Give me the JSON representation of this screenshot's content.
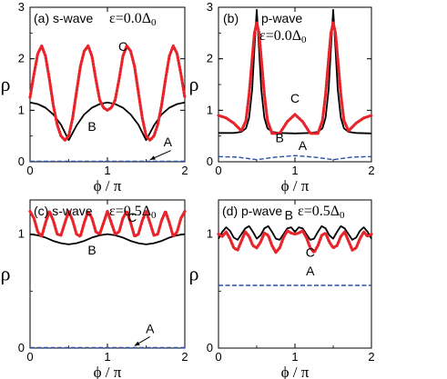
{
  "chart_data": [
    {
      "id": "a",
      "type": "line",
      "title": "(a) s-wave",
      "condition": "ε=0.0Δ",
      "condition_sub": "0",
      "xlabel": "ϕ / π",
      "ylabel": "ρ",
      "xlim": [
        0,
        2
      ],
      "ylim": [
        0,
        3
      ],
      "xticks": [
        0,
        1,
        2
      ],
      "yticks": [
        0,
        1,
        2,
        3
      ],
      "series": [
        {
          "name": "A",
          "color": "#2b4fa8",
          "style": "dashed",
          "x": [
            0,
            0.25,
            0.5,
            0.75,
            1,
            1.25,
            1.5,
            1.75,
            2
          ],
          "y": [
            0.01,
            0.01,
            0.01,
            0.01,
            0.01,
            0.01,
            0.01,
            0.01,
            0.01
          ]
        },
        {
          "name": "B",
          "color": "#000000",
          "style": "solid",
          "x": [
            0,
            0.1,
            0.2,
            0.3,
            0.4,
            0.5,
            0.6,
            0.7,
            0.8,
            0.9,
            1.0,
            1.1,
            1.2,
            1.3,
            1.4,
            1.5,
            1.6,
            1.7,
            1.8,
            1.9,
            2.0
          ],
          "y": [
            1.15,
            1.12,
            1.05,
            0.92,
            0.72,
            0.42,
            0.7,
            0.92,
            1.05,
            1.12,
            1.15,
            1.12,
            1.05,
            0.92,
            0.72,
            0.42,
            0.7,
            0.92,
            1.05,
            1.12,
            1.15
          ]
        },
        {
          "name": "C",
          "color": "#e8242a",
          "style": "dotted",
          "x": [
            0,
            0.05,
            0.1,
            0.15,
            0.2,
            0.25,
            0.3,
            0.35,
            0.4,
            0.45,
            0.5,
            0.55,
            0.6,
            0.65,
            0.7,
            0.75,
            0.8,
            0.85,
            0.9,
            0.95,
            1.0,
            1.05,
            1.1,
            1.15,
            1.2,
            1.25,
            1.3,
            1.35,
            1.4,
            1.45,
            1.5,
            1.55,
            1.6,
            1.65,
            1.7,
            1.75,
            1.8,
            1.85,
            1.9,
            1.95,
            2.0
          ],
          "y": [
            1.25,
            1.7,
            2.1,
            2.25,
            2.05,
            1.6,
            1.1,
            0.72,
            0.5,
            0.42,
            0.5,
            0.85,
            1.35,
            1.85,
            2.15,
            2.25,
            2.05,
            1.6,
            1.2,
            1.05,
            1.0,
            1.05,
            1.2,
            1.6,
            2.05,
            2.25,
            2.15,
            1.85,
            1.35,
            0.85,
            0.5,
            0.42,
            0.5,
            0.72,
            1.1,
            1.6,
            2.05,
            2.25,
            2.1,
            1.7,
            1.25
          ]
        }
      ],
      "annotations": [
        {
          "text": "C",
          "x": 1.2,
          "y": 2.15
        },
        {
          "text": "B",
          "x": 0.8,
          "y": 0.6
        },
        {
          "text": "A",
          "x": 1.78,
          "y": 0.3
        }
      ],
      "arrow": {
        "from": [
          1.82,
          0.22
        ],
        "to": [
          1.55,
          0.04
        ]
      }
    },
    {
      "id": "b",
      "type": "line",
      "title": "(b)",
      "title2": "p-wave",
      "condition": "ε=0.0Δ",
      "condition_sub": "0",
      "xlabel": "ϕ / π",
      "ylabel": "ρ",
      "xlim": [
        0,
        2
      ],
      "ylim": [
        0,
        3
      ],
      "xticks": [
        0,
        1,
        2
      ],
      "yticks": [
        0,
        1,
        2,
        3
      ],
      "series": [
        {
          "name": "A",
          "color": "#2b4fa8",
          "style": "dashed",
          "x": [
            0,
            0.25,
            0.5,
            0.75,
            1,
            1.25,
            1.5,
            1.75,
            2
          ],
          "y": [
            0.1,
            0.09,
            0.04,
            0.09,
            0.12,
            0.09,
            0.04,
            0.09,
            0.1
          ]
        },
        {
          "name": "B",
          "color": "#000000",
          "style": "solid",
          "x": [
            0,
            0.2,
            0.3,
            0.36,
            0.4,
            0.44,
            0.47,
            0.5,
            0.53,
            0.56,
            0.6,
            0.64,
            0.7,
            0.8,
            1.0,
            1.2,
            1.3,
            1.36,
            1.4,
            1.44,
            1.47,
            1.5,
            1.53,
            1.56,
            1.6,
            1.64,
            1.7,
            1.8,
            2.0
          ],
          "y": [
            0.56,
            0.56,
            0.58,
            0.65,
            0.85,
            1.4,
            2.2,
            2.95,
            2.2,
            1.4,
            0.85,
            0.65,
            0.58,
            0.56,
            0.55,
            0.56,
            0.58,
            0.65,
            0.85,
            1.4,
            2.2,
            2.95,
            2.2,
            1.4,
            0.85,
            0.65,
            0.58,
            0.56,
            0.55
          ]
        },
        {
          "name": "C",
          "color": "#e8242a",
          "style": "dotted",
          "x": [
            0,
            0.1,
            0.2,
            0.3,
            0.36,
            0.4,
            0.44,
            0.47,
            0.5,
            0.53,
            0.56,
            0.6,
            0.64,
            0.7,
            0.8,
            0.9,
            1.0,
            1.1,
            1.2,
            1.3,
            1.36,
            1.4,
            1.44,
            1.47,
            1.5,
            1.53,
            1.56,
            1.6,
            1.64,
            1.7,
            1.8,
            1.9,
            2.0
          ],
          "y": [
            0.9,
            0.85,
            0.75,
            0.6,
            0.8,
            1.3,
            2.0,
            2.5,
            2.7,
            2.5,
            2.0,
            1.3,
            0.8,
            0.55,
            0.55,
            0.78,
            0.92,
            0.78,
            0.55,
            0.55,
            0.8,
            1.3,
            2.0,
            2.5,
            2.7,
            2.5,
            2.0,
            1.3,
            0.8,
            0.6,
            0.75,
            0.85,
            0.9
          ]
        }
      ],
      "annotations": [
        {
          "text": "C",
          "x": 1.0,
          "y": 1.15
        },
        {
          "text": "B",
          "x": 0.8,
          "y": 0.38
        },
        {
          "text": "A",
          "x": 1.1,
          "y": 0.23
        }
      ]
    },
    {
      "id": "c",
      "type": "line",
      "title": "(c) s-wave",
      "condition": "ε=0.5Δ",
      "condition_sub": "0",
      "xlabel": "ϕ / π",
      "ylabel": "ρ",
      "xlim": [
        0,
        2
      ],
      "ylim": [
        0,
        1.3
      ],
      "xticks": [
        0,
        1,
        2
      ],
      "yticks": [
        0,
        1
      ],
      "series": [
        {
          "name": "A",
          "color": "#2b4fa8",
          "style": "dashed",
          "x": [
            0,
            0.5,
            1,
            1.5,
            2
          ],
          "y": [
            0.004,
            0.004,
            0.004,
            0.004,
            0.004
          ]
        },
        {
          "name": "B",
          "color": "#000000",
          "style": "solid",
          "x": [
            0,
            0.1,
            0.2,
            0.3,
            0.4,
            0.5,
            0.6,
            0.7,
            0.8,
            0.9,
            1.0,
            1.1,
            1.2,
            1.3,
            1.4,
            1.5,
            1.6,
            1.7,
            1.8,
            1.9,
            2.0
          ],
          "y": [
            1.0,
            0.99,
            0.97,
            0.94,
            0.92,
            0.91,
            0.92,
            0.94,
            0.97,
            0.99,
            1.0,
            0.99,
            0.97,
            0.94,
            0.92,
            0.91,
            0.92,
            0.94,
            0.97,
            0.99,
            1.0
          ]
        },
        {
          "name": "C",
          "color": "#e8242a",
          "style": "dotted",
          "x": [
            0,
            0.05,
            0.1,
            0.15,
            0.2,
            0.25,
            0.3,
            0.35,
            0.4,
            0.45,
            0.5,
            0.55,
            0.6,
            0.65,
            0.7,
            0.75,
            0.8,
            0.85,
            0.9,
            0.95,
            1.0,
            1.05,
            1.1,
            1.15,
            1.2,
            1.25,
            1.3,
            1.35,
            1.4,
            1.45,
            1.5,
            1.55,
            1.6,
            1.65,
            1.7,
            1.75,
            1.8,
            1.85,
            1.9,
            1.95,
            2.0
          ],
          "y": [
            1.2,
            1.14,
            1.02,
            0.98,
            1.1,
            1.2,
            1.12,
            1.0,
            0.99,
            1.1,
            1.2,
            1.12,
            1.0,
            0.98,
            1.1,
            1.2,
            1.14,
            1.02,
            1.0,
            1.1,
            1.2,
            1.1,
            1.0,
            1.02,
            1.14,
            1.2,
            1.1,
            0.98,
            1.0,
            1.12,
            1.2,
            1.1,
            0.99,
            1.0,
            1.12,
            1.2,
            1.1,
            0.98,
            1.02,
            1.14,
            1.2
          ]
        }
      ],
      "annotations": [
        {
          "text": "C",
          "x": 1.32,
          "y": 1.11
        },
        {
          "text": "B",
          "x": 0.8,
          "y": 0.82
        },
        {
          "text": "A",
          "x": 1.55,
          "y": 0.13
        }
      ],
      "arrow": {
        "from": [
          1.55,
          0.1
        ],
        "to": [
          1.35,
          0.02
        ]
      }
    },
    {
      "id": "d",
      "type": "line",
      "title": "(d) p-wave",
      "condition": "ε=0.5Δ",
      "condition_sub": "0",
      "xlabel": "ϕ / π",
      "ylabel": "ρ",
      "xlim": [
        0,
        2
      ],
      "ylim": [
        0,
        1.3
      ],
      "xticks": [
        0,
        1,
        2
      ],
      "yticks": [
        0,
        1
      ],
      "series": [
        {
          "name": "A",
          "color": "#2b4fa8",
          "style": "dashed",
          "x": [
            0,
            0.5,
            1,
            1.5,
            2
          ],
          "y": [
            0.55,
            0.55,
            0.55,
            0.55,
            0.55
          ]
        },
        {
          "name": "B",
          "color": "#000000",
          "style": "solid",
          "x": [
            0,
            0.05,
            0.1,
            0.15,
            0.2,
            0.25,
            0.3,
            0.35,
            0.4,
            0.45,
            0.5,
            0.55,
            0.6,
            0.65,
            0.7,
            0.75,
            0.8,
            0.85,
            0.9,
            0.95,
            1.0,
            1.05,
            1.1,
            1.15,
            1.2,
            1.25,
            1.3,
            1.35,
            1.4,
            1.45,
            1.5,
            1.55,
            1.6,
            1.65,
            1.7,
            1.75,
            1.8,
            1.85,
            1.9,
            1.95,
            2.0
          ],
          "y": [
            0.96,
            1.02,
            1.06,
            1.03,
            0.97,
            0.95,
            1.0,
            1.05,
            1.07,
            1.02,
            0.96,
            0.99,
            1.05,
            1.07,
            1.02,
            0.96,
            0.95,
            1.0,
            1.05,
            1.06,
            1.02,
            1.06,
            1.05,
            1.0,
            0.95,
            0.96,
            1.02,
            1.07,
            1.05,
            0.99,
            0.96,
            1.02,
            1.07,
            1.05,
            1.0,
            0.95,
            0.97,
            1.03,
            1.06,
            1.02,
            0.96
          ]
        },
        {
          "name": "C",
          "color": "#e8242a",
          "style": "dotted",
          "x": [
            0,
            0.05,
            0.1,
            0.15,
            0.2,
            0.25,
            0.3,
            0.35,
            0.4,
            0.45,
            0.5,
            0.55,
            0.6,
            0.65,
            0.7,
            0.75,
            0.8,
            0.85,
            0.9,
            0.95,
            1.0,
            1.05,
            1.1,
            1.15,
            1.2,
            1.25,
            1.3,
            1.35,
            1.4,
            1.45,
            1.5,
            1.55,
            1.6,
            1.65,
            1.7,
            1.75,
            1.8,
            1.85,
            1.9,
            1.95,
            2.0
          ],
          "y": [
            1.0,
            0.98,
            1.02,
            0.96,
            0.88,
            0.86,
            0.94,
            1.02,
            0.98,
            0.9,
            0.88,
            0.93,
            1.01,
            0.99,
            0.9,
            0.84,
            0.88,
            0.97,
            1.03,
            1.01,
            1.0,
            1.01,
            1.03,
            0.97,
            0.88,
            0.84,
            0.9,
            0.99,
            1.01,
            0.93,
            0.88,
            0.9,
            0.98,
            1.02,
            0.94,
            0.86,
            0.88,
            0.96,
            1.02,
            0.98,
            1.0
          ]
        }
      ],
      "annotations": [
        {
          "text": "B",
          "x": 0.92,
          "y": 1.13
        },
        {
          "text": "C",
          "x": 1.2,
          "y": 0.8
        },
        {
          "text": "A",
          "x": 1.2,
          "y": 0.64
        }
      ]
    }
  ]
}
